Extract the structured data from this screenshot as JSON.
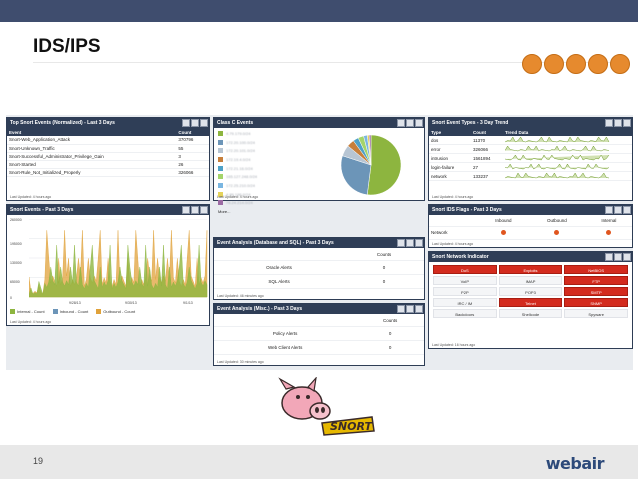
{
  "slide": {
    "title": "IDS/IPS",
    "page_number": "19",
    "brand": "webair"
  },
  "colors": {
    "topbar": "#3f4d6e",
    "panel_header": "#2f3e57",
    "accent": "#e68a2e",
    "alert_red": "#d32b1e"
  },
  "header_icons": [
    "chart-icon",
    "laptop-icon",
    "server-icon",
    "list-icon",
    "grid-icon"
  ],
  "top_events": {
    "title": "Top Snort Events (Normalized) - Last 3 Days",
    "columns": [
      "Event",
      "Count"
    ],
    "rows": [
      [
        "Snort-Web_Application_Attack",
        "370796"
      ],
      [
        "Snort-Unknown_Traffic",
        "55"
      ],
      [
        "Snort-Successful_Administrator_Privilege_Gain",
        "3"
      ],
      [
        "Snort-Started",
        "26"
      ],
      [
        "Snort-Rule_Not_Initialized_Properly",
        "326066"
      ]
    ],
    "updated": "Last Updated: 4 hours ago"
  },
  "class_c": {
    "title": "Class C Events",
    "items": [
      {
        "label": "4.79.179.0/24",
        "color": "#8db53f"
      },
      {
        "label": "172.20.100.0/24",
        "color": "#6c95b8"
      },
      {
        "label": "172.20.101.0/24",
        "color": "#b7c5d3"
      },
      {
        "label": "172.19.4.0/24",
        "color": "#c77f3b"
      },
      {
        "label": "172.21.16.0/24",
        "color": "#4ea1c7"
      },
      {
        "label": "165.127.248.0/24",
        "color": "#a4d46a"
      },
      {
        "label": "172.25.210.0/24",
        "color": "#7ab6e1"
      },
      {
        "label": "4.89.196.0/24",
        "color": "#e5d35b"
      },
      {
        "label": "78.24.214.0/24",
        "color": "#9c6ba4"
      }
    ],
    "more": "More...",
    "pie_values": [
      52,
      28,
      6,
      4,
      3,
      3,
      2,
      1,
      1
    ],
    "updated": "Last Updated: 4 hours ago"
  },
  "trend": {
    "title": "Snort Event Types - 3 Day Trend",
    "columns": [
      "Type",
      "Count",
      "Trend Data"
    ],
    "rows": [
      [
        "dos",
        "11370"
      ],
      [
        "error",
        "326066"
      ],
      [
        "intrusion",
        "1561894"
      ],
      [
        "login-failure",
        "27"
      ],
      [
        "network",
        "133237"
      ]
    ],
    "updated": "Last Updated: 4 hours ago"
  },
  "snort_events": {
    "title": "Snort Events - Past 3 Days",
    "y_ticks": [
      "260000",
      "195000",
      "130000",
      "65000",
      "0"
    ],
    "x_ticks": [
      "9/28/13",
      "9/30/13",
      "9/1/13"
    ],
    "series": [
      {
        "name": "Internal - Count",
        "color": "#8db53f"
      },
      {
        "name": "Inbound - Count",
        "color": "#6c95b8"
      },
      {
        "name": "Outbound - Count",
        "color": "#e0a23a"
      }
    ],
    "updated": "Last Updated: 4 hours ago"
  },
  "ids_flags": {
    "title": "Snort IDS Flags - Past 3 Days",
    "columns": [
      "",
      "Inbound",
      "Outbound",
      "Internal"
    ],
    "row_label": "Network",
    "updated": "Last Updated: 4 hours ago"
  },
  "db_sql": {
    "title": "Event Analysis (Database and SQL) - Past 3 Days",
    "columns": [
      "",
      "Counts"
    ],
    "rows": [
      [
        "Oracle Alerts",
        "0"
      ],
      [
        "SQL Alerts",
        "0"
      ]
    ],
    "updated": "Last Updated: 46 minutes ago"
  },
  "misc": {
    "title": "Event Analysis (Misc.) - Past 3 Days",
    "columns": [
      "",
      "Counts"
    ],
    "rows": [
      [
        "Policy Alerts",
        "0"
      ],
      [
        "Web Client Alerts",
        "0"
      ]
    ],
    "updated": "Last Updated: 30 minutes ago"
  },
  "net_indicator": {
    "title": "Snort Network Indicator",
    "cells": [
      {
        "label": "DoS",
        "alert": true
      },
      {
        "label": "Exploits",
        "alert": true
      },
      {
        "label": "NetBIOS",
        "alert": true
      },
      {
        "label": "VoIP",
        "alert": false
      },
      {
        "label": "IMAP",
        "alert": false
      },
      {
        "label": "FTP",
        "alert": true
      },
      {
        "label": "P2P",
        "alert": false
      },
      {
        "label": "POP3",
        "alert": false
      },
      {
        "label": "SMTP",
        "alert": true
      },
      {
        "label": "IRC / IM",
        "alert": false
      },
      {
        "label": "Telnet",
        "alert": true
      },
      {
        "label": "SNMP",
        "alert": true
      },
      {
        "label": "Backdoors",
        "alert": false
      },
      {
        "label": "Shellcode",
        "alert": false
      },
      {
        "label": "Spyware",
        "alert": false
      }
    ],
    "updated": "Last Updated: 16 hours ago"
  },
  "snort_logo_text": "SNORT"
}
